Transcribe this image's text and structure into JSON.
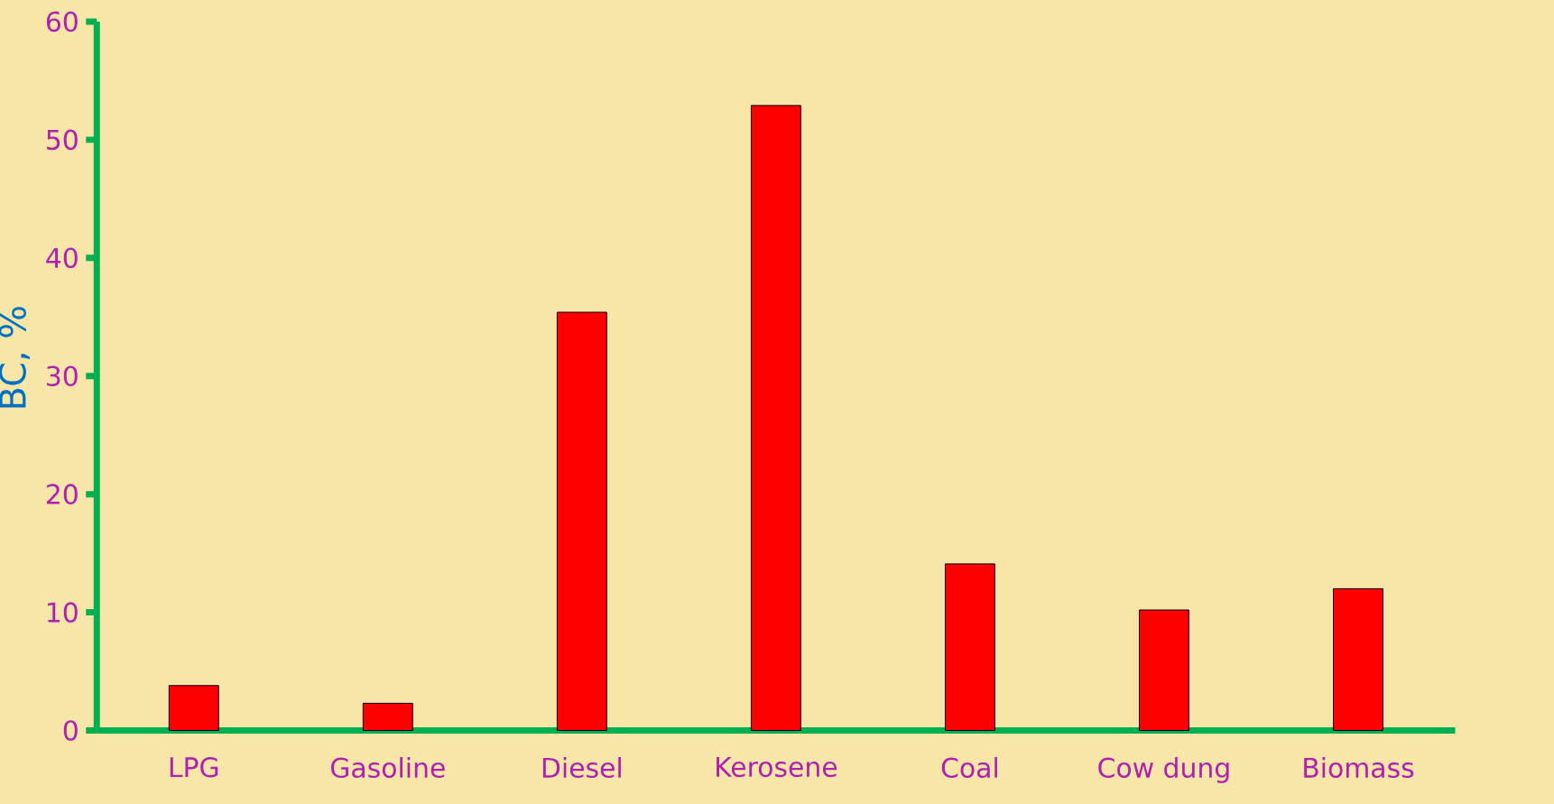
{
  "chart_data": {
    "type": "bar",
    "ylabel": "BC, %",
    "categories": [
      "LPG",
      "Gasoline",
      "Diesel",
      "Kerosene",
      "Coal",
      "Cow dung",
      "Biomass"
    ],
    "values": [
      3.8,
      2.3,
      35.4,
      52.9,
      14.1,
      10.2,
      12.0
    ],
    "color": "#ff0000",
    "ylim": [
      0,
      60
    ],
    "yticks": [
      0,
      10,
      20,
      30,
      40,
      50,
      60
    ],
    "grid": false
  }
}
